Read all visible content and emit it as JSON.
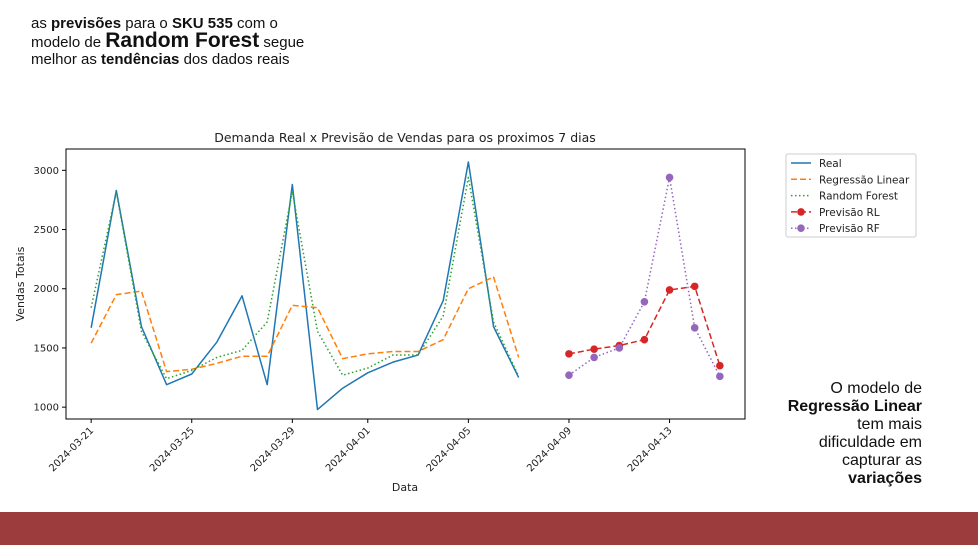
{
  "intro": {
    "p1": "as ",
    "b1": "previsões",
    "p2": " para o ",
    "b2": "SKU 535",
    "p3": " com o modelo de ",
    "b3": "Random Forest",
    "p4": " segue melhor as ",
    "b4": "tendências",
    "p5": " dos dados reais"
  },
  "note": {
    "line1": "O modelo de",
    "line2": "Regressão Linear",
    "line3": "tem mais",
    "line4": "dificuldade em",
    "line5": "capturar as",
    "line6": "variações"
  },
  "colors": {
    "real": "#1f77b4",
    "lr": "#ff7f0e",
    "rf": "#2ca02c",
    "prev_rl": "#d62728",
    "prev_rf": "#9467bd",
    "footer": "#9c3c3c"
  },
  "chart_data": {
    "type": "line",
    "title": "Demanda Real x Previsão de Vendas para os proximos 7 dias",
    "xlabel": "Data",
    "ylabel": "Vendas Totais",
    "ylim": [
      900,
      3180
    ],
    "xlim": [
      "2024-03-20",
      "2024-04-16"
    ],
    "x_ticks": [
      "2024-03-21",
      "2024-03-25",
      "2024-03-29",
      "2024-04-01",
      "2024-04-05",
      "2024-04-09",
      "2024-04-13"
    ],
    "y_ticks": [
      1000,
      1500,
      2000,
      2500,
      3000
    ],
    "legend_position": "outside-right",
    "series": [
      {
        "name": "Real",
        "style": "solid",
        "color_key": "real",
        "x": [
          "2024-03-21",
          "2024-03-22",
          "2024-03-23",
          "2024-03-24",
          "2024-03-25",
          "2024-03-26",
          "2024-03-27",
          "2024-03-28",
          "2024-03-29",
          "2024-03-30",
          "2024-03-31",
          "2024-04-01",
          "2024-04-02",
          "2024-04-03",
          "2024-04-04",
          "2024-04-05",
          "2024-04-06",
          "2024-04-07",
          "2024-04-08"
        ],
        "y": [
          1670,
          2830,
          1680,
          1190,
          1280,
          1550,
          1940,
          1190,
          2880,
          980,
          1160,
          1290,
          1380,
          1440,
          1900,
          3070,
          1680,
          1250,
          null
        ]
      },
      {
        "name": "Regressão Linear",
        "style": "dashed",
        "color_key": "lr",
        "x": [
          "2024-03-21",
          "2024-03-22",
          "2024-03-23",
          "2024-03-24",
          "2024-03-25",
          "2024-03-26",
          "2024-03-27",
          "2024-03-28",
          "2024-03-29",
          "2024-03-30",
          "2024-03-31",
          "2024-04-01",
          "2024-04-02",
          "2024-04-03",
          "2024-04-04",
          "2024-04-05",
          "2024-04-06",
          "2024-04-07",
          "2024-04-08"
        ],
        "y": [
          1540,
          1950,
          1980,
          1300,
          1320,
          1370,
          1430,
          1430,
          1860,
          1840,
          1410,
          1450,
          1470,
          1470,
          1570,
          2000,
          2100,
          1420,
          null
        ]
      },
      {
        "name": "Random Forest",
        "style": "dotted",
        "color_key": "rf",
        "x": [
          "2024-03-21",
          "2024-03-22",
          "2024-03-23",
          "2024-03-24",
          "2024-03-25",
          "2024-03-26",
          "2024-03-27",
          "2024-03-28",
          "2024-03-29",
          "2024-03-30",
          "2024-03-31",
          "2024-04-01",
          "2024-04-02",
          "2024-04-03",
          "2024-04-04",
          "2024-04-05",
          "2024-04-06",
          "2024-04-07",
          "2024-04-08"
        ],
        "y": [
          1840,
          2820,
          1640,
          1240,
          1310,
          1420,
          1480,
          1720,
          2820,
          1640,
          1270,
          1330,
          1440,
          1440,
          1770,
          2940,
          1720,
          1260,
          null
        ]
      },
      {
        "name": "Previsão RL",
        "style": "dashed-marker",
        "color_key": "prev_rl",
        "x": [
          "2024-04-09",
          "2024-04-10",
          "2024-04-11",
          "2024-04-12",
          "2024-04-13",
          "2024-04-14",
          "2024-04-15"
        ],
        "y": [
          1450,
          1490,
          1520,
          1570,
          1990,
          2020,
          1350
        ]
      },
      {
        "name": "Previsão RF",
        "style": "dotted-marker",
        "color_key": "prev_rf",
        "x": [
          "2024-04-09",
          "2024-04-10",
          "2024-04-11",
          "2024-04-12",
          "2024-04-13",
          "2024-04-14",
          "2024-04-15"
        ],
        "y": [
          1270,
          1420,
          1500,
          1890,
          2940,
          1670,
          1260
        ]
      }
    ]
  }
}
